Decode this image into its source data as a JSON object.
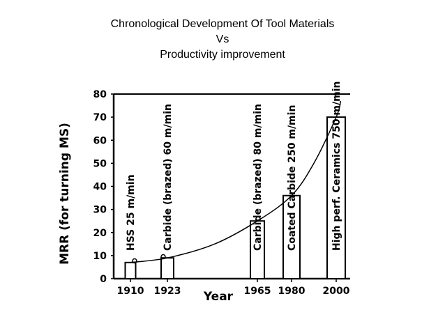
{
  "slide": {
    "title_lines": [
      "Chronological Development Of Tool Materials",
      "Vs",
      "Productivity improvement"
    ]
  },
  "chart_data": {
    "type": "bar",
    "xlabel": "Year",
    "ylabel": "MRR (for turning MS)",
    "ylim": [
      0,
      80
    ],
    "yticks": [
      0,
      10,
      20,
      30,
      40,
      50,
      60,
      70,
      80
    ],
    "xticks": [
      "1910",
      "1923",
      "1965",
      "1980",
      "2000"
    ],
    "bars": [
      {
        "year": "1910",
        "value": 7,
        "label": "HSS    25 m/min"
      },
      {
        "year": "1923",
        "value": 9,
        "label": "Carbide (brazed)  60 m/min"
      },
      {
        "year": "1965",
        "value": 25,
        "label": "Carbide (brazed) 80 m/min"
      },
      {
        "year": "1980",
        "value": 36,
        "label": "Coated Carbide  250 m/min"
      },
      {
        "year": "2000",
        "value": 70,
        "label": "High perf. Ceramics  750 m/min"
      }
    ],
    "trend_curve": [
      [
        1910,
        7
      ],
      [
        1923,
        9
      ],
      [
        1945,
        15
      ],
      [
        1965,
        25
      ],
      [
        1980,
        36
      ],
      [
        1990,
        50
      ],
      [
        2000,
        70
      ],
      [
        2002,
        77
      ]
    ],
    "grid": false,
    "colors": {
      "line": "#000000",
      "bar_fill": "#ffffff"
    }
  }
}
